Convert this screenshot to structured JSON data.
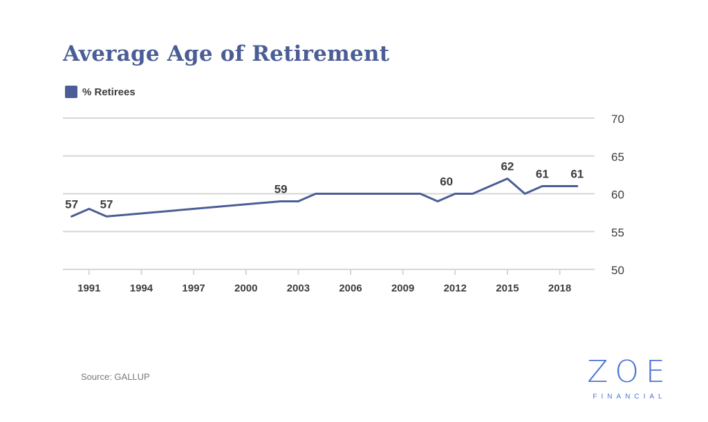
{
  "colors": {
    "series": "#4a5d96",
    "grid": "#d6d6d6",
    "text": "#3c3c3c",
    "brand": "#4b73d6"
  },
  "chart_data": {
    "type": "line",
    "title": "Average Age of Retirement",
    "legend": "top-left",
    "ylim": [
      50,
      70
    ],
    "yticks": [
      "70",
      "65",
      "60",
      "55",
      "50"
    ],
    "xticks": [
      "1991",
      "1994",
      "1997",
      "2000",
      "2003",
      "2006",
      "2009",
      "2012",
      "2015",
      "2018"
    ],
    "xlim": [
      1989.5,
      2020
    ],
    "grid": true,
    "y_axis_side": "right",
    "series": [
      {
        "name": "% Retirees",
        "x": [
          1990,
          1991,
          1992,
          2002,
          2003,
          2004,
          2010,
          2011,
          2012,
          2013,
          2015,
          2016,
          2017,
          2019
        ],
        "y": [
          57,
          58,
          57,
          59,
          59,
          60,
          60,
          59,
          60,
          60,
          62,
          60,
          61,
          61
        ]
      }
    ],
    "data_labels": [
      {
        "x": 1990,
        "y": 57,
        "text": "57"
      },
      {
        "x": 1992,
        "y": 57,
        "text": "57"
      },
      {
        "x": 2002,
        "y": 59,
        "text": "59"
      },
      {
        "x": 2011.5,
        "y": 60,
        "text": "60"
      },
      {
        "x": 2015,
        "y": 62,
        "text": "62"
      },
      {
        "x": 2017,
        "y": 61,
        "text": "61"
      },
      {
        "x": 2019,
        "y": 61,
        "text": "61"
      }
    ]
  },
  "footer": {
    "source": "Source: GALLUP"
  },
  "logo": {
    "main": "ZOE",
    "sub": "FINANCIAL"
  }
}
